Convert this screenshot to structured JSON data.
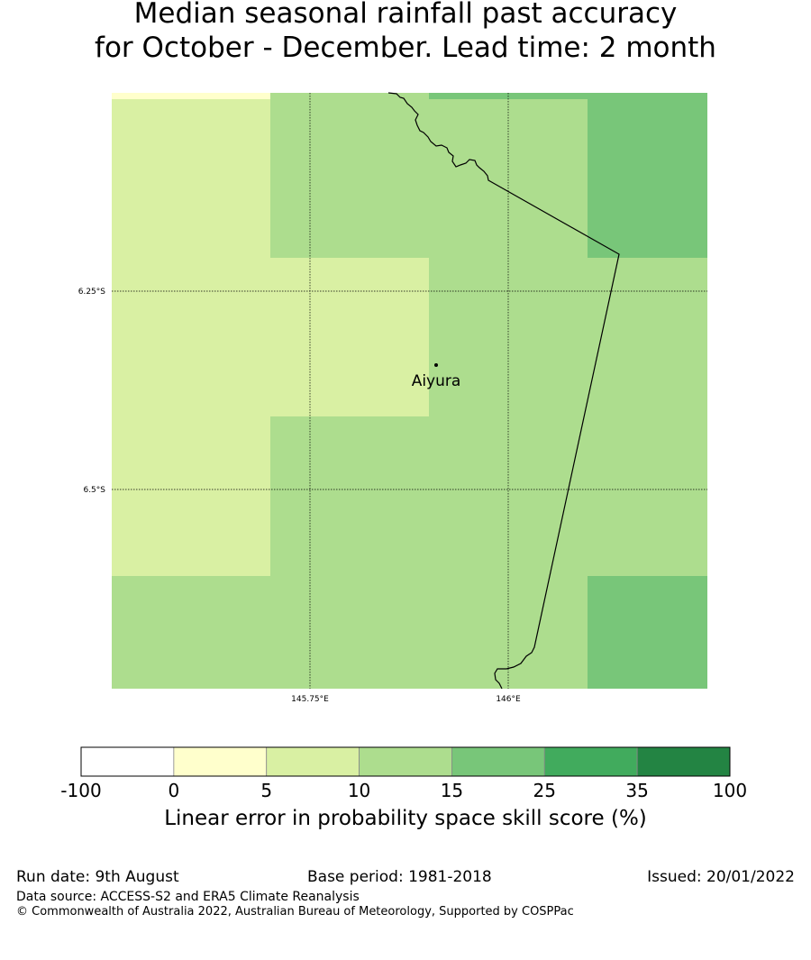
{
  "title": {
    "line1": "Median seasonal rainfall past accuracy",
    "line2": "for October - December. Lead time: 2 month"
  },
  "map": {
    "gridlines": {
      "lat_labels": [
        "6.25°S",
        "6.5°S"
      ],
      "lon_labels": [
        "145.75°E",
        "146°E"
      ]
    },
    "place": {
      "name": "Aiyura"
    },
    "cell_colors": {
      "light_yellow": "#ffffcc",
      "pale_yellow_green": "#d9f0a3",
      "light_green": "#addd8e",
      "medium_green": "#78c679"
    }
  },
  "colorbar": {
    "title": "Linear error in probability space skill score (%)",
    "tick_labels": [
      "-100",
      "0",
      "5",
      "10",
      "15",
      "25",
      "35",
      "100"
    ],
    "colors": [
      "#ffffff",
      "#ffffcc",
      "#d9f0a3",
      "#addd8e",
      "#78c679",
      "#41ab5d",
      "#238443"
    ]
  },
  "footer": {
    "run_date": "Run date: 9th August",
    "base_period": "Base period: 1981-2018",
    "issued": "Issued: 20/01/2022",
    "data_source": "Data source: ACCESS-S2 and ERA5 Climate Reanalysis",
    "copyright": "© Commonwealth of Australia 2022, Australian Bureau of Meteorology, Supported by COSPPac"
  }
}
